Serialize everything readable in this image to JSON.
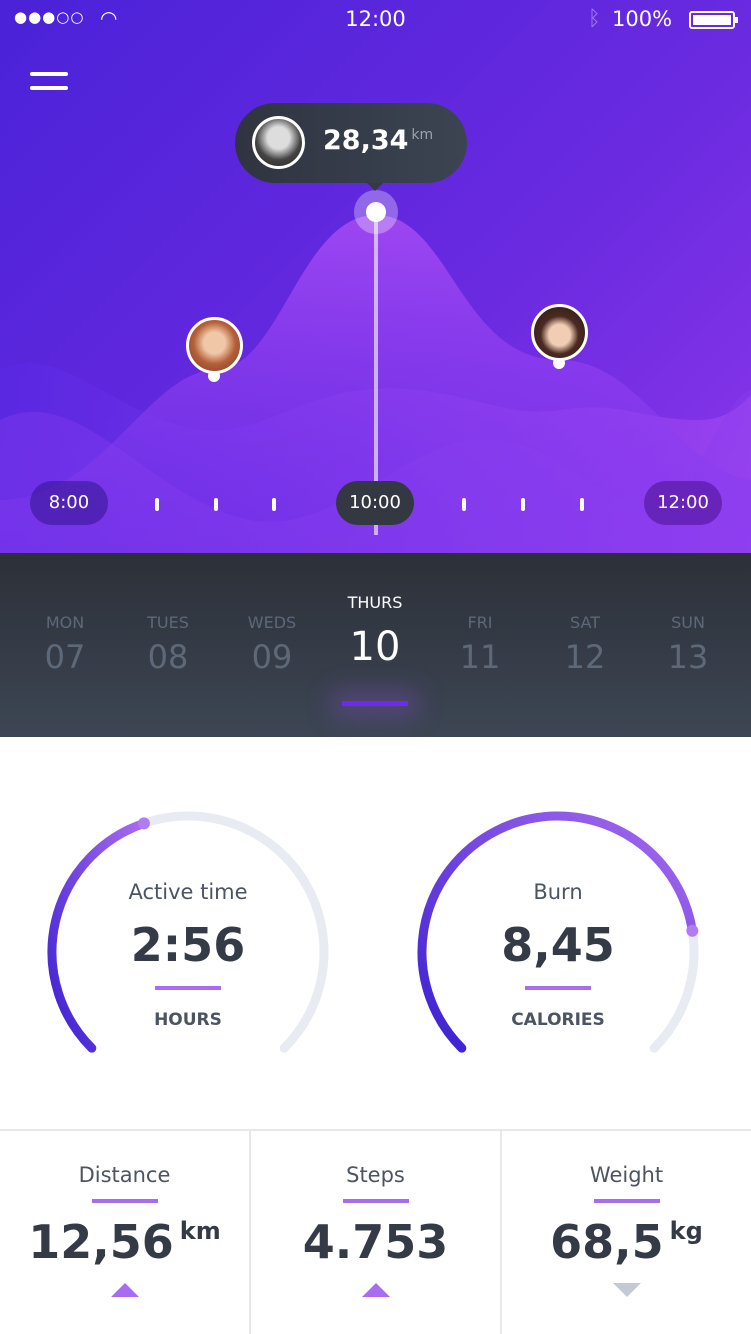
{
  "status": {
    "signal": "●●●○○",
    "time": "12:00",
    "battery": "100%"
  },
  "tooltip": {
    "value": "28,34",
    "unit": "km"
  },
  "timeline": {
    "labels": [
      "8:00",
      "10:00",
      "12:00"
    ],
    "selected": "10:00"
  },
  "days": [
    {
      "name": "MON",
      "date": "07"
    },
    {
      "name": "TUES",
      "date": "08"
    },
    {
      "name": "WEDS",
      "date": "09"
    },
    {
      "name": "THURS",
      "date": "10",
      "selected": true
    },
    {
      "name": "FRI",
      "date": "11"
    },
    {
      "name": "SAT",
      "date": "12"
    },
    {
      "name": "SUN",
      "date": "13"
    }
  ],
  "gauges": [
    {
      "label": "Active time",
      "value": "2:56",
      "unit": "HOURS",
      "progress": 0.43
    },
    {
      "label": "Burn",
      "value": "8,45",
      "unit": "CALORIES",
      "progress": 0.8
    }
  ],
  "stats": [
    {
      "label": "Distance",
      "value": "12,56",
      "unit": "km",
      "trend": "up"
    },
    {
      "label": "Steps",
      "value": "4.753",
      "unit": "",
      "trend": "up"
    },
    {
      "label": "Weight",
      "value": "68,5",
      "unit": "kg",
      "trend": "down"
    }
  ],
  "colors": {
    "accent": "#6c2cf0",
    "gauge_start": "#3a1fd0",
    "gauge_end": "#a96cf0",
    "track": "#e9ebf2"
  }
}
